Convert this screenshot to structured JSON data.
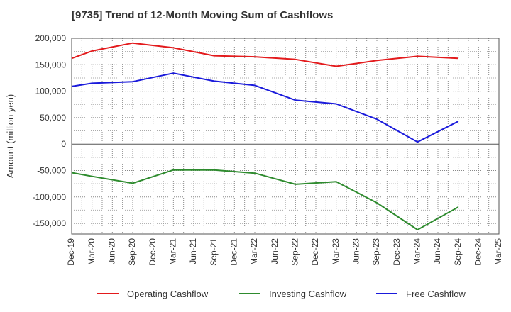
{
  "chart_data": {
    "type": "line",
    "title": "[9735]  Trend of 12-Month Moving Sum of Cashflows",
    "xlabel": "",
    "ylabel": "Amount (million yen)",
    "ylim": [
      -170000,
      200000
    ],
    "yticks": [
      200000,
      150000,
      100000,
      50000,
      0,
      -50000,
      -100000,
      -150000
    ],
    "ytick_labels": [
      "200,000",
      "150,000",
      "100,000",
      "50,000",
      "0",
      "-50,000",
      "-100,000",
      "-150,000"
    ],
    "categories": [
      "Dec-19",
      "Mar-20",
      "Jun-20",
      "Sep-20",
      "Dec-20",
      "Mar-21",
      "Jun-21",
      "Sep-21",
      "Dec-21",
      "Mar-22",
      "Jun-22",
      "Sep-22",
      "Dec-22",
      "Mar-23",
      "Jun-23",
      "Sep-23",
      "Dec-23",
      "Mar-24",
      "Jun-24",
      "Sep-24",
      "Dec-24",
      "Mar-25"
    ],
    "grid": true,
    "legend_position": "bottom",
    "series": [
      {
        "name": "Operating Cashflow",
        "color": "#e31a1c",
        "points": [
          [
            "Dec-19",
            162000
          ],
          [
            "Mar-20",
            176000
          ],
          [
            "Sep-20",
            191000
          ],
          [
            "Mar-21",
            182000
          ],
          [
            "Sep-21",
            167000
          ],
          [
            "Mar-22",
            165000
          ],
          [
            "Sep-22",
            160000
          ],
          [
            "Mar-23",
            147000
          ],
          [
            "Sep-23",
            158000
          ],
          [
            "Mar-24",
            166000
          ],
          [
            "Sep-24",
            162000
          ]
        ]
      },
      {
        "name": "Investing Cashflow",
        "color": "#2e8b2e",
        "points": [
          [
            "Dec-19",
            -54000
          ],
          [
            "Mar-20",
            -61000
          ],
          [
            "Sep-20",
            -74000
          ],
          [
            "Mar-21",
            -49000
          ],
          [
            "Sep-21",
            -49000
          ],
          [
            "Mar-22",
            -55000
          ],
          [
            "Sep-22",
            -76000
          ],
          [
            "Mar-23",
            -71000
          ],
          [
            "Sep-23",
            -111000
          ],
          [
            "Mar-24",
            -162000
          ],
          [
            "Sep-24",
            -119000
          ]
        ]
      },
      {
        "name": "Free Cashflow",
        "color": "#1a1adb",
        "points": [
          [
            "Dec-19",
            109000
          ],
          [
            "Mar-20",
            115000
          ],
          [
            "Sep-20",
            118000
          ],
          [
            "Mar-21",
            134000
          ],
          [
            "Sep-21",
            119000
          ],
          [
            "Mar-22",
            111000
          ],
          [
            "Sep-22",
            83000
          ],
          [
            "Mar-23",
            76000
          ],
          [
            "Sep-23",
            47000
          ],
          [
            "Mar-24",
            4000
          ],
          [
            "Sep-24",
            43000
          ]
        ]
      }
    ]
  }
}
